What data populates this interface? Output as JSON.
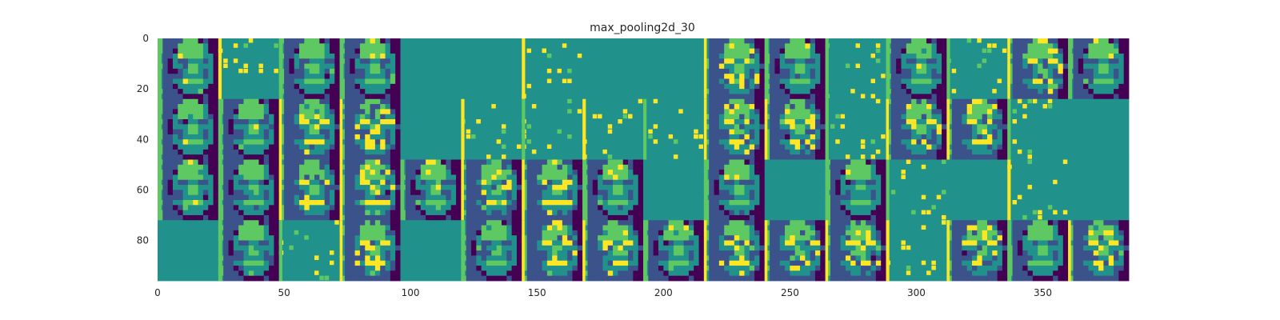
{
  "chart_data": {
    "type": "heatmap",
    "title": "max_pooling2d_30",
    "xlabel": "",
    "ylabel": "",
    "xlim": [
      0,
      384
    ],
    "ylim": [
      96,
      0
    ],
    "x_ticks": [
      "0",
      "50",
      "100",
      "150",
      "200",
      "250",
      "300",
      "350"
    ],
    "x_tick_values": [
      0,
      50,
      100,
      150,
      200,
      250,
      300,
      350
    ],
    "y_ticks": [
      "0",
      "20",
      "40",
      "60",
      "80"
    ],
    "y_tick_values": [
      0,
      20,
      40,
      60,
      80
    ],
    "grid": {
      "rows": 4,
      "cols": 16,
      "tile_size": 24
    },
    "colormap": "viridis",
    "tiles": [
      "face",
      "sparse",
      "face",
      "face",
      "flat",
      "flat",
      "sparse",
      "flat",
      "flat",
      "face_contrast",
      "face",
      "sparse",
      "face",
      "sparse",
      "face_contrast",
      "face",
      "face",
      "face",
      "face_contrast",
      "face_contrast",
      "flat",
      "sparse",
      "sparse",
      "sparse",
      "sparse",
      "face_contrast",
      "face_contrast",
      "sparse",
      "face_contrast",
      "face_contrast",
      "sparse",
      "flat",
      "face",
      "face",
      "face_contrast",
      "face_contrast",
      "face",
      "face_contrast",
      "face_contrast",
      "face",
      "flat",
      "face",
      "flat",
      "face",
      "sparse",
      "flat",
      "sparse",
      "flat",
      "flat",
      "face",
      "sparse",
      "face_contrast",
      "flat",
      "face",
      "face_contrast",
      "face_contrast",
      "face",
      "face_contrast",
      "face_contrast",
      "face_contrast",
      "sparse",
      "face_contrast",
      "face",
      "face_contrast"
    ],
    "colors": {
      "dark": "#440154",
      "deep": "#3b528b",
      "mid": "#21918c",
      "bright": "#5ec962",
      "yellow": "#fde725"
    }
  }
}
